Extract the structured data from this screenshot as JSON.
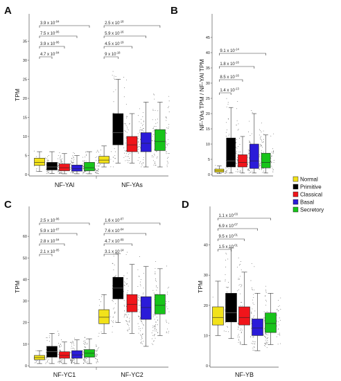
{
  "figure": {
    "legend": [
      {
        "label": "Normal",
        "color": "#f2e21a"
      },
      {
        "label": "Primitive",
        "color": "#000000"
      },
      {
        "label": "Classical",
        "color": "#f0151b"
      },
      {
        "label": "Basal",
        "color": "#2b1bd8"
      },
      {
        "label": "Secretory",
        "color": "#18c41a"
      }
    ]
  },
  "chart_data": [
    {
      "panel": "A",
      "type": "box",
      "ylabel": "TPM",
      "ylim": [
        0,
        40
      ],
      "yticks": [
        0,
        5,
        10,
        15,
        20,
        25,
        30,
        35
      ],
      "groups": [
        {
          "label": "NF-YAl",
          "boxes": [
            {
              "category": "Normal",
              "whisker_low": 0.8,
              "q1": 2.4,
              "median": 3.2,
              "q3": 4.3,
              "whisker_high": 6.0
            },
            {
              "category": "Primitive",
              "whisker_low": 0.3,
              "q1": 1.2,
              "median": 2.0,
              "q3": 3.2,
              "whisker_high": 6.0
            },
            {
              "category": "Classical",
              "whisker_low": 0.2,
              "q1": 1.0,
              "median": 1.8,
              "q3": 2.8,
              "whisker_high": 5.5
            },
            {
              "category": "Basal",
              "whisker_low": 0.2,
              "q1": 0.9,
              "median": 1.5,
              "q3": 2.5,
              "whisker_high": 5.0
            },
            {
              "category": "Secretory",
              "whisker_low": 0.2,
              "q1": 1.0,
              "median": 1.8,
              "q3": 3.2,
              "whisker_high": 6.0
            }
          ],
          "pvalues": [
            "4.7 x 10^-04",
            "3.9 x 10^-06",
            "7.5 x 10^-06",
            "3.9 x 10^-04"
          ]
        },
        {
          "label": "NF-YAs",
          "boxes": [
            {
              "category": "Normal",
              "whisker_low": 2.0,
              "q1": 3.0,
              "median": 3.8,
              "q3": 4.8,
              "whisker_high": 7.5
            },
            {
              "category": "Primitive",
              "whisker_low": 3.0,
              "q1": 7.8,
              "median": 11.0,
              "q3": 16.0,
              "whisker_high": 25.0
            },
            {
              "category": "Classical",
              "whisker_low": 3.0,
              "q1": 6.0,
              "median": 7.8,
              "q3": 10.0,
              "whisker_high": 16.0
            },
            {
              "category": "Basal",
              "whisker_low": 2.0,
              "q1": 6.0,
              "median": 8.2,
              "q3": 11.0,
              "whisker_high": 19.0
            },
            {
              "category": "Secretory",
              "whisker_low": 2.0,
              "q1": 6.3,
              "median": 8.7,
              "q3": 11.8,
              "whisker_high": 19.0
            }
          ],
          "pvalues": [
            "9 x 10^-18",
            "4.5 x 10^-19",
            "5.9 x 10^-16",
            "2.5 x 10^-18"
          ]
        }
      ]
    },
    {
      "panel": "B",
      "type": "box",
      "ylabel": "NF-YAs TPM / NF-YAl TPM",
      "ylim": [
        0,
        50
      ],
      "yticks": [
        0,
        5,
        10,
        15,
        20,
        25,
        30,
        35,
        40,
        45
      ],
      "groups": [
        {
          "label": "",
          "boxes": [
            {
              "category": "Normal",
              "whisker_low": 0.3,
              "q1": 0.8,
              "median": 1.2,
              "q3": 1.8,
              "whisker_high": 2.8
            },
            {
              "category": "Primitive",
              "whisker_low": 0.5,
              "q1": 2.5,
              "median": 4.5,
              "q3": 12.0,
              "whisker_high": 22.0
            },
            {
              "category": "Classical",
              "whisker_low": 0.5,
              "q1": 2.5,
              "median": 4.0,
              "q3": 6.5,
              "whisker_high": 12.5
            },
            {
              "category": "Basal",
              "whisker_low": 0.5,
              "q1": 2.0,
              "median": 4.5,
              "q3": 10.0,
              "whisker_high": 20.0
            },
            {
              "category": "Secretory",
              "whisker_low": 0.5,
              "q1": 2.2,
              "median": 4.0,
              "q3": 7.0,
              "whisker_high": 13.0
            }
          ],
          "pvalues": [
            "1.4 x 10^-13",
            "8.5 x 10^-16",
            "1.8 x 10^-16",
            "9.1 x 10^-14"
          ]
        }
      ]
    },
    {
      "panel": "C",
      "type": "box",
      "ylabel": "TPM",
      "ylim": [
        0,
        70
      ],
      "yticks": [
        0,
        10,
        20,
        30,
        40,
        50,
        60
      ],
      "groups": [
        {
          "label": "NF-YC1",
          "boxes": [
            {
              "category": "Normal",
              "whisker_low": 1.0,
              "q1": 2.8,
              "median": 3.8,
              "q3": 4.8,
              "whisker_high": 7.0
            },
            {
              "category": "Primitive",
              "whisker_low": 1.0,
              "q1": 4.0,
              "median": 6.5,
              "q3": 9.0,
              "whisker_high": 15.0
            },
            {
              "category": "Classical",
              "whisker_low": 1.0,
              "q1": 3.5,
              "median": 4.8,
              "q3": 6.5,
              "whisker_high": 11.0
            },
            {
              "category": "Basal",
              "whisker_low": 1.0,
              "q1": 3.5,
              "median": 5.0,
              "q3": 7.0,
              "whisker_high": 12.0
            },
            {
              "category": "Secretory",
              "whisker_low": 1.0,
              "q1": 4.0,
              "median": 5.8,
              "q3": 7.5,
              "whisker_high": 12.5
            }
          ],
          "pvalues": [
            "2.1 x 10^-05",
            "2.8 x 10^-04",
            "5.9 x 10^-07",
            "2.5 x 10^-06"
          ]
        },
        {
          "label": "NF-YC2",
          "boxes": [
            {
              "category": "Normal",
              "whisker_low": 15.0,
              "q1": 19.5,
              "median": 22.5,
              "q3": 26.0,
              "whisker_high": 33.0
            },
            {
              "category": "Primitive",
              "whisker_low": 20.0,
              "q1": 31.0,
              "median": 36.0,
              "q3": 41.0,
              "whisker_high": 52.0
            },
            {
              "category": "Classical",
              "whisker_low": 15.0,
              "q1": 25.0,
              "median": 28.5,
              "q3": 33.0,
              "whisker_high": 47.0
            },
            {
              "category": "Basal",
              "whisker_low": 9.0,
              "q1": 21.5,
              "median": 27.0,
              "q3": 32.0,
              "whisker_high": 46.0
            },
            {
              "category": "Secretory",
              "whisker_low": 14.0,
              "q1": 24.0,
              "median": 28.0,
              "q3": 33.0,
              "whisker_high": 45.0
            }
          ],
          "pvalues": [
            "3.1 x 10^-14",
            "4.7 x 10^-09",
            "7.6 x 10^-04",
            "1.6 x 10^-07"
          ]
        }
      ]
    },
    {
      "panel": "D",
      "type": "box",
      "ylabel": "TPM",
      "ylim": [
        0,
        50
      ],
      "yticks": [
        0,
        10,
        20,
        30,
        40
      ],
      "groups": [
        {
          "label": "NF-YB",
          "boxes": [
            {
              "category": "Normal",
              "whisker_low": 10.0,
              "q1": 13.5,
              "median": 16.0,
              "q3": 19.5,
              "whisker_high": 28.0
            },
            {
              "category": "Primitive",
              "whisker_low": 9.0,
              "q1": 14.5,
              "median": 17.5,
              "q3": 24.0,
              "whisker_high": 39.0
            },
            {
              "category": "Classical",
              "whisker_low": 7.0,
              "q1": 13.5,
              "median": 16.0,
              "q3": 19.5,
              "whisker_high": 31.0
            },
            {
              "category": "Basal",
              "whisker_low": 5.0,
              "q1": 10.0,
              "median": 12.5,
              "q3": 15.5,
              "whisker_high": 24.0
            },
            {
              "category": "Secretory",
              "whisker_low": 7.0,
              "q1": 11.0,
              "median": 14.0,
              "q3": 17.5,
              "whisker_high": 24.0
            }
          ],
          "pvalues": [
            "1.5 x 10^-01",
            "9.5 x 10^-01",
            "6.9 x 10^-07",
            "1.1 x 10^-03"
          ]
        }
      ]
    }
  ]
}
